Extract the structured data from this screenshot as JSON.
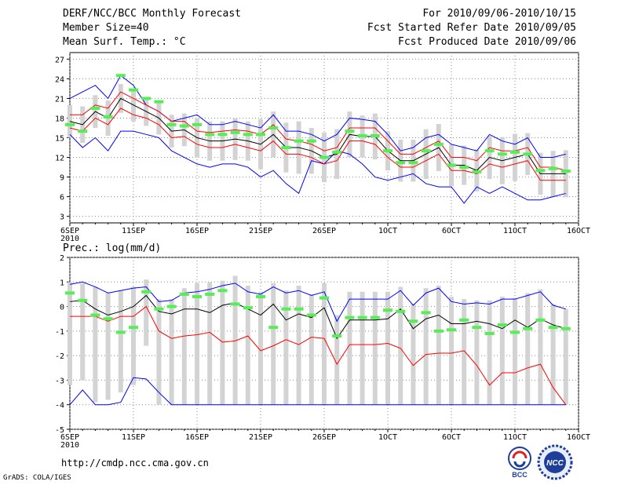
{
  "header": {
    "title": "DERF/NCC/BCC Monthly Forecast",
    "member_size": "Member Size=40",
    "variable": "Mean Surf. Temp.: °C",
    "period": "For 2010/09/06-2010/10/15",
    "fcst_started": "Fcst Started Refer Date 2010/09/05",
    "fcst_produced": "Fcst Produced Date 2010/09/06"
  },
  "footer": {
    "url": "http://cmdp.ncc.cma.gov.cn",
    "grads": "GrADS: COLA/IGES",
    "logo_bcc": "BCC",
    "logo_ncc": "NCC"
  },
  "colors": {
    "ensemble_max": "#0000ff",
    "ensemble_min": "#0000ff",
    "mean": "#000000",
    "spread": "#ff0000",
    "box": "#d3d3d3",
    "obs": "#55ee55"
  },
  "chart_data": [
    {
      "type": "line",
      "title": "Mean Surf. Temp.: °C",
      "ylim": [
        2,
        28
      ],
      "yticks": [
        3,
        6,
        9,
        12,
        15,
        18,
        21,
        24,
        27
      ],
      "xlim": [
        0,
        40
      ],
      "xticks": [
        {
          "label": "6SEP",
          "sub": "2010",
          "x": 0
        },
        {
          "label": "11SEP",
          "x": 5
        },
        {
          "label": "16SEP",
          "x": 10
        },
        {
          "label": "21SEP",
          "x": 15
        },
        {
          "label": "26SEP",
          "x": 20
        },
        {
          "label": "1OCT",
          "x": 25
        },
        {
          "label": "6OCT",
          "x": 30
        },
        {
          "label": "11OCT",
          "x": 35
        },
        {
          "label": "16OCT",
          "x": 40
        }
      ],
      "grid": true,
      "x": [
        0,
        1,
        2,
        3,
        4,
        5,
        6,
        7,
        8,
        9,
        10,
        11,
        12,
        13,
        14,
        15,
        16,
        17,
        18,
        19,
        20,
        21,
        22,
        23,
        24,
        25,
        26,
        27,
        28,
        29,
        30,
        31,
        32,
        33,
        34,
        35,
        36,
        37,
        38,
        39
      ],
      "series": [
        {
          "name": "max",
          "values": [
            21,
            22,
            23,
            21,
            24.5,
            23,
            20,
            19,
            17.5,
            18,
            18.5,
            17,
            17,
            17.5,
            17,
            16.5,
            18.5,
            16,
            16,
            15.5,
            14.5,
            15.5,
            18,
            17.8,
            17.5,
            15.5,
            13,
            13.5,
            15,
            15.5,
            14,
            13.5,
            13,
            15.5,
            14.5,
            14,
            15,
            12,
            12,
            12.5
          ]
        },
        {
          "name": "upper",
          "values": [
            18.5,
            18.5,
            20,
            19.5,
            22,
            21,
            20,
            19,
            17.5,
            17.5,
            16,
            15.8,
            16,
            16.2,
            16,
            15.5,
            17,
            14.8,
            14.5,
            14,
            13,
            13.5,
            16.5,
            16.5,
            16.5,
            14.5,
            12.5,
            12.5,
            13.5,
            14.5,
            12,
            12,
            11.5,
            13.5,
            13,
            13,
            13.5,
            10.5,
            10.5,
            10
          ]
        },
        {
          "name": "mean",
          "values": [
            17.5,
            17,
            19,
            18,
            21,
            20,
            19,
            18,
            16,
            16.2,
            15,
            14.5,
            14.5,
            14.8,
            14.5,
            14,
            15.5,
            13.5,
            13.5,
            13,
            12,
            12.5,
            15.5,
            15.2,
            15.2,
            13,
            11.5,
            11.5,
            12.5,
            13.5,
            10.8,
            10.8,
            10,
            12,
            11.5,
            12,
            12.5,
            9.5,
            9.5,
            9.5
          ]
        },
        {
          "name": "lower",
          "values": [
            16.5,
            16,
            18,
            17,
            19.5,
            18.5,
            18,
            17,
            15,
            15.2,
            14,
            13.5,
            13.5,
            14,
            13.5,
            13,
            14.5,
            12.5,
            12.5,
            12,
            11,
            11.5,
            14.5,
            14.5,
            14,
            12,
            10.5,
            10.5,
            11.5,
            12.5,
            10,
            10,
            9.5,
            11,
            10.5,
            11,
            11.5,
            8.5,
            8.5,
            8.5
          ]
        },
        {
          "name": "min",
          "values": [
            15.5,
            13.5,
            15,
            13,
            16,
            16,
            15.5,
            15,
            13,
            12,
            11,
            10.5,
            11,
            11,
            10.5,
            9,
            10,
            8,
            6.5,
            11.5,
            11,
            13,
            12.5,
            11,
            9,
            8.5,
            9,
            9.5,
            8,
            7.5,
            7.5,
            5,
            7.5,
            6.5,
            7.5,
            6.5,
            5.5,
            5.5,
            6,
            6.5
          ]
        },
        {
          "name": "observed",
          "values": [
            17,
            16,
            19.5,
            18.2,
            24.5,
            22.3,
            21,
            20.5,
            17,
            16.8,
            17,
            15.5,
            15.5,
            15.8,
            15.5,
            15.5,
            16.5,
            13.5,
            14.5,
            14.5,
            12,
            12.8,
            16,
            15.3,
            15.3,
            13,
            11.2,
            11.2,
            13,
            14,
            10.8,
            10.5,
            9.8,
            13,
            12.5,
            12.8,
            12.5,
            10,
            10.3,
            9.9
          ]
        }
      ],
      "box_half_range": [
        2.5,
        2.8,
        2.5,
        2.7,
        2.2,
        2.5,
        2.2,
        2.5,
        2.5,
        2.5,
        3,
        3,
        3,
        3.2,
        3,
        3.8,
        3.5,
        3.8,
        4,
        3.5,
        3.8,
        3.8,
        3.5,
        3.2,
        3.5,
        3,
        3.2,
        3.2,
        3.8,
        3.6,
        3.2,
        3,
        3.2,
        3.3,
        3.6,
        3.6,
        3.2,
        3.2,
        3.5,
        3.6
      ]
    },
    {
      "type": "line",
      "title": "Prec.: log(mm/d)",
      "ylim": [
        -5,
        2
      ],
      "yticks": [
        -5,
        -4,
        -3,
        -2,
        -1,
        0,
        1,
        2
      ],
      "xlim": [
        0,
        40
      ],
      "xticks": [
        {
          "label": "6SEP",
          "sub": "2010",
          "x": 0
        },
        {
          "label": "11SEP",
          "x": 5
        },
        {
          "label": "16SEP",
          "x": 10
        },
        {
          "label": "21SEP",
          "x": 15
        },
        {
          "label": "26SEP",
          "x": 20
        },
        {
          "label": "1OCT",
          "x": 25
        },
        {
          "label": "6OCT",
          "x": 30
        },
        {
          "label": "11OCT",
          "x": 35
        },
        {
          "label": "16OCT",
          "x": 40
        }
      ],
      "grid": true,
      "x": [
        0,
        1,
        2,
        3,
        4,
        5,
        6,
        7,
        8,
        9,
        10,
        11,
        12,
        13,
        14,
        15,
        16,
        17,
        18,
        19,
        20,
        21,
        22,
        23,
        24,
        25,
        26,
        27,
        28,
        29,
        30,
        31,
        32,
        33,
        34,
        35,
        36,
        37,
        38,
        39
      ],
      "series": [
        {
          "name": "max",
          "values": [
            0.9,
            1,
            0.8,
            0.55,
            0.65,
            0.75,
            0.8,
            0.2,
            0.25,
            0.55,
            0.6,
            0.7,
            0.85,
            0.95,
            0.6,
            0.5,
            0.8,
            0.55,
            0.65,
            0.45,
            0.6,
            -0.6,
            0.3,
            0.3,
            0.3,
            0.3,
            0.65,
            0.05,
            0.55,
            0.75,
            0.2,
            0.1,
            0.15,
            0.1,
            0.3,
            0.3,
            0.45,
            0.6,
            0.05,
            -0.1
          ]
        },
        {
          "name": "mean",
          "values": [
            0.2,
            0.25,
            -0.1,
            -0.35,
            -0.2,
            0,
            0.45,
            -0.2,
            -0.3,
            -0.1,
            -0.1,
            -0.25,
            0.05,
            0.15,
            -0.1,
            -0.35,
            0.1,
            -0.55,
            -0.3,
            -0.45,
            -0.05,
            -1.3,
            -0.55,
            -0.55,
            -0.55,
            -0.5,
            -0.1,
            -0.9,
            -0.5,
            -0.35,
            -0.7,
            -0.7,
            -0.6,
            -0.7,
            -0.9,
            -0.55,
            -0.85,
            -0.5,
            -0.75,
            -0.9
          ]
        },
        {
          "name": "lower",
          "values": [
            -0.4,
            -0.4,
            -0.4,
            -0.6,
            -0.4,
            -0.4,
            0,
            -1,
            -1.3,
            -1.2,
            -1.15,
            -1.05,
            -1.45,
            -1.4,
            -1.2,
            -1.8,
            -1.6,
            -1.35,
            -1.55,
            -1.25,
            -1.3,
            -2.35,
            -1.55,
            -1.55,
            -1.55,
            -1.5,
            -1.7,
            -2.4,
            -1.95,
            -1.9,
            -1.9,
            -1.8,
            -2.4,
            -3.2,
            -2.7,
            -2.7,
            -2.5,
            -2.35,
            -3.3,
            -4
          ]
        },
        {
          "name": "min",
          "values": [
            -4,
            -3.4,
            -4,
            -4,
            -3.9,
            -2.9,
            -2.95,
            -3.5,
            -4,
            -4,
            -4,
            -4,
            -4,
            -4,
            -4,
            -4,
            -4,
            -4,
            -4,
            -4,
            -4,
            -4,
            -4,
            -4,
            -4,
            -4,
            -4,
            -4,
            -4,
            -4,
            -4,
            -4,
            -4,
            -4,
            -4,
            -4,
            -4,
            -4,
            -4,
            -4
          ]
        },
        {
          "name": "observed",
          "values": [
            0.55,
            0.25,
            -0.35,
            -0.5,
            -1.05,
            -0.85,
            0.6,
            -0.1,
            0,
            0.5,
            0.4,
            0.5,
            0.65,
            0.1,
            -0.05,
            0.4,
            -0.85,
            -0.1,
            -0.1,
            -0.35,
            0.35,
            -1.2,
            -0.45,
            -0.45,
            -0.45,
            -0.15,
            -0.2,
            -0.6,
            -0.25,
            -1,
            -0.95,
            -0.55,
            -0.85,
            -1.1,
            -0.75,
            -1.05,
            -0.9,
            -0.55,
            -0.85,
            -0.9
          ]
        }
      ],
      "box_top": [
        1,
        0.95,
        0.8,
        0.55,
        0.65,
        0.8,
        1.1,
        0.3,
        0.3,
        0.75,
        0.95,
        1,
        1.05,
        1.25,
        0.85,
        0.6,
        0.95,
        0.65,
        0.85,
        0.5,
        0.95,
        -0.35,
        0.6,
        0.6,
        0.6,
        0.6,
        0.8,
        0.1,
        0.75,
        0.85,
        0.4,
        0.3,
        0.25,
        0.25,
        0.4,
        0.35,
        0.55,
        0.7,
        0.1,
        -0.1
      ],
      "box_bottom": [
        -3.2,
        -3,
        -3.9,
        -3.8,
        -3.5,
        -3.2,
        -1.6,
        -4,
        -4,
        -4,
        -4,
        -4,
        -4,
        -4,
        -4,
        -4,
        -4,
        -4,
        -4,
        -4,
        -4,
        -4,
        -4,
        -4,
        -4,
        -4,
        -4,
        -4,
        -4,
        -4,
        -4,
        -4,
        -4,
        -4,
        -4,
        -4,
        -4,
        -4,
        -4,
        -4
      ]
    }
  ]
}
